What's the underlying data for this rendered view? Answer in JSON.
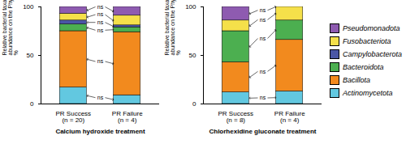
{
  "chart_data": [
    {
      "type": "bar",
      "stacked": true,
      "legend": "right",
      "x_label": "Calcium hydroxide treatment",
      "y_label": "Relative bacterial taxa abundance on the Phylum level, %",
      "categories": [
        "PR Success (n = 20)",
        "PR Failure (n = 4)"
      ],
      "series": [
        {
          "name": "Actinomycetota",
          "color": "#62c8e0",
          "values": [
            17,
            9
          ]
        },
        {
          "name": "Bacillota",
          "color": "#f28a1e",
          "values": [
            58,
            65
          ]
        },
        {
          "name": "Bacteroidota",
          "color": "#4caf50",
          "values": [
            7,
            5
          ]
        },
        {
          "name": "Campylobacterota",
          "color": "#4a56a6",
          "values": [
            4,
            2
          ]
        },
        {
          "name": "Fusobacteriota",
          "color": "#f5e04a",
          "values": [
            7,
            10
          ]
        },
        {
          "name": "Pseudomonadota",
          "color": "#8e5bb0",
          "values": [
            7,
            9
          ]
        }
      ],
      "ylim": [
        0,
        100
      ],
      "yticks": [
        0,
        50,
        100
      ],
      "annotations": [
        {
          "text": "ns",
          "series": "Pseudomonadota"
        },
        {
          "text": "ns",
          "series": "Fusobacteriota"
        },
        {
          "text": "ns",
          "series": "Campylobacterota"
        },
        {
          "text": "ns",
          "series": "Bacteroidota"
        },
        {
          "text": "ns",
          "series": "Bacillota"
        },
        {
          "text": "ns",
          "series": "Actinomycetota"
        }
      ]
    },
    {
      "type": "bar",
      "stacked": true,
      "legend": "right",
      "x_label": "Chlorhexidine gluconate treatment",
      "y_label": "Relative bacterial taxa abundance on the Phylum level, %",
      "categories": [
        "PR Success (n = 8)",
        "PR Failure (n = 4)"
      ],
      "series": [
        {
          "name": "Actinomycetota",
          "color": "#62c8e0",
          "values": [
            12,
            13
          ]
        },
        {
          "name": "Bacillota",
          "color": "#f28a1e",
          "values": [
            31,
            53
          ]
        },
        {
          "name": "Bacteroidota",
          "color": "#4caf50",
          "values": [
            32,
            20
          ]
        },
        {
          "name": "Campylobacterota",
          "color": "#4a56a6",
          "values": [
            0,
            0
          ]
        },
        {
          "name": "Fusobacteriota",
          "color": "#f5e04a",
          "values": [
            11,
            14
          ]
        },
        {
          "name": "Pseudomonadota",
          "color": "#8e5bb0",
          "values": [
            14,
            0
          ]
        }
      ],
      "ylim": [
        0,
        100
      ],
      "yticks": [
        0,
        50,
        100
      ],
      "annotations": [
        {
          "text": "ns",
          "series": "Pseudomonadota"
        },
        {
          "text": "ns",
          "series": "Fusobacteriota"
        },
        {
          "text": "ns",
          "series": "Bacteroidota"
        },
        {
          "text": "ns",
          "series": "Bacillota"
        },
        {
          "text": "ns",
          "series": "Actinomycetota"
        }
      ]
    }
  ]
}
